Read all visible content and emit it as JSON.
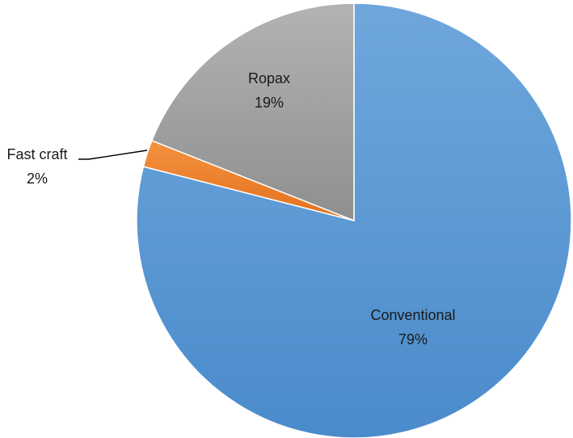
{
  "chart_data": {
    "type": "pie",
    "title": "",
    "categories": [
      "Conventional",
      "Fast craft",
      "Ropax"
    ],
    "values": [
      79,
      2,
      19
    ],
    "labels": [
      {
        "name": "Conventional",
        "percent": "79%"
      },
      {
        "name": "Fast craft",
        "percent": "2%"
      },
      {
        "name": "Ropax",
        "percent": "19%"
      }
    ],
    "colors": [
      "#5b9bd5",
      "#ed7d31",
      "#a5a5a5"
    ],
    "start_angle_deg": 0,
    "direction": "clockwise",
    "legend": "none",
    "data_labels": "category name and percentage"
  }
}
